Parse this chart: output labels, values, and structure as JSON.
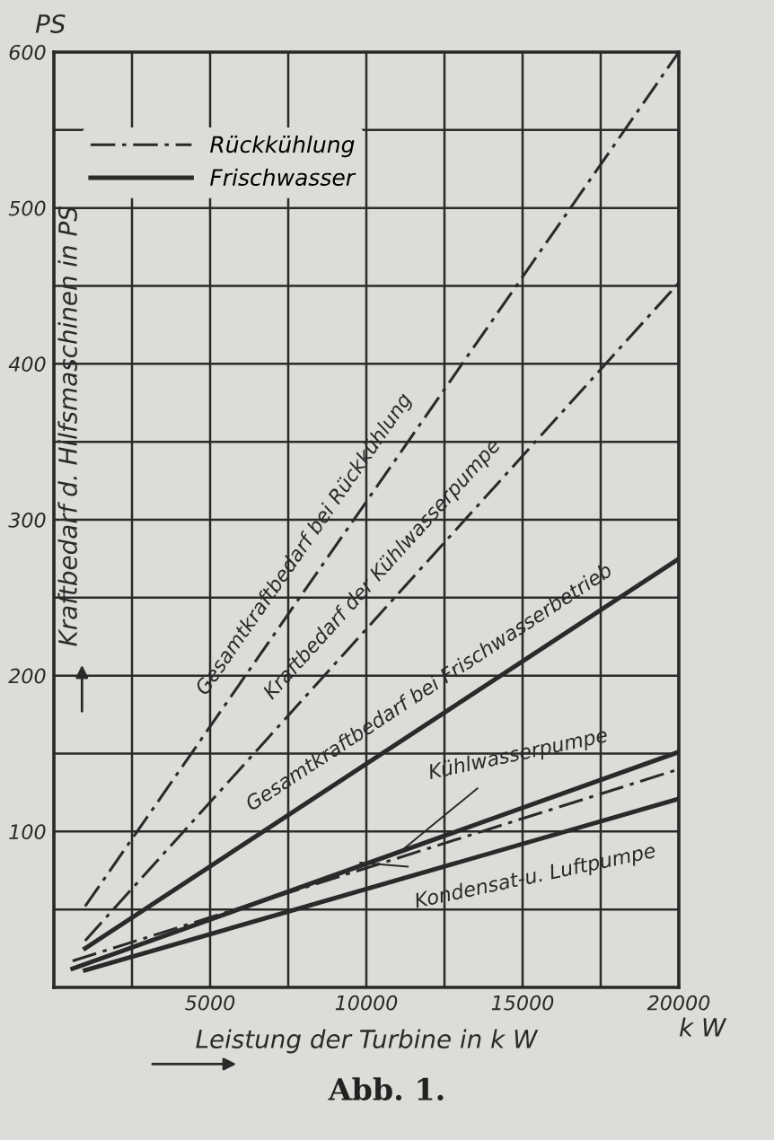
{
  "chart_data": {
    "type": "line",
    "title": "Abb. 1.",
    "xlabel": "Leistung der Turbine in k W",
    "ylabel": "Kraftbedarf d. Hilfsmaschinen in PS",
    "series": [
      {
        "name": "Rückkühlung",
        "color": "#2a2a2a",
        "line_style": "dashdot",
        "x": [
          1000,
          20000
        ],
        "values": [
          52,
          600
        ]
      },
      {
        "color": "#2a2a2a",
        "line_style": "dashdot",
        "x": [
          1000,
          20000
        ],
        "values": [
          30,
          452
        ]
      },
      {
        "name": "Frischwasser",
        "color": "#2a2a2a",
        "line_style": "solid",
        "x": [
          1000,
          20000
        ],
        "values": [
          25,
          275
        ]
      },
      {
        "color": "#2a2a2a",
        "line_style": "dashdot",
        "x": [
          600,
          20000
        ],
        "values": [
          17,
          140
        ]
      },
      {
        "color": "#2a2a2a",
        "line_style": "solid",
        "x": [
          600,
          20000
        ],
        "values": [
          12,
          151
        ]
      },
      {
        "color": "#2a2a2a",
        "line_style": "solid",
        "x": [
          1000,
          20000
        ],
        "values": [
          11,
          121
        ]
      }
    ],
    "annotations": [
      {
        "text": "Gesamtkraftbedarf bei Rückkühlung",
        "x": 8500,
        "y": 268
      },
      {
        "text": "Kraftbedarf der Kühlwasserpumpe",
        "x": 11000,
        "y": 252
      },
      {
        "text": "Gesamtkraftbedarf bei Frischwasserbetrieb",
        "x": 12500,
        "y": 176
      },
      {
        "text": "Kühlwasserpumpe",
        "x": 11200,
        "y": 89
      },
      {
        "text": "Kondensat-u. Luftpumpe",
        "x": 9800,
        "y": 80
      },
      "PS",
      "k W"
    ],
    "xlim": [
      0,
      20000
    ],
    "ylim": [
      0,
      600
    ],
    "xticks": [
      {
        "value": 0,
        "label": null
      },
      {
        "value": 2500,
        "label": null
      },
      5000,
      {
        "value": 7500,
        "label": null
      },
      10000,
      {
        "value": 12500,
        "label": null
      },
      15000,
      {
        "value": 17500,
        "label": null
      },
      20000
    ],
    "yticks": [
      {
        "value": 0,
        "label": null
      },
      {
        "value": 50,
        "label": null
      },
      100,
      {
        "value": 150,
        "label": null
      },
      200,
      {
        "value": 250,
        "label": null
      },
      300,
      {
        "value": 350,
        "label": null
      },
      400,
      {
        "value": 450,
        "label": null
      },
      500,
      {
        "value": 550,
        "label": null
      },
      600
    ],
    "grid": true,
    "legend": "top left",
    "marker": "none"
  }
}
